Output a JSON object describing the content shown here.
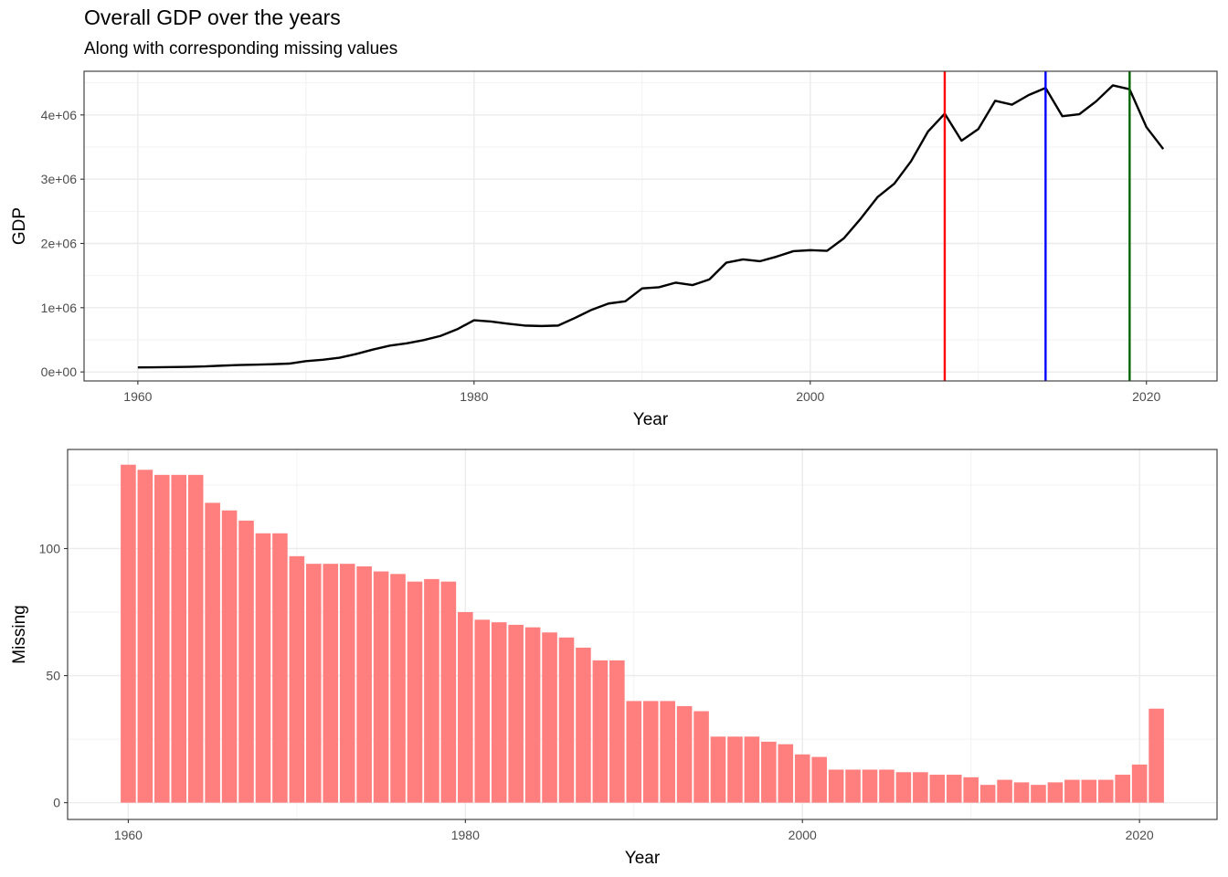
{
  "title": "Overall GDP over the years",
  "subtitle": "Along with corresponding missing values",
  "chart_data": [
    {
      "type": "line",
      "xlabel": "Year",
      "ylabel": "GDP",
      "xlim": [
        1956.8,
        2024.2
      ],
      "ylim": [
        -140000,
        4680000
      ],
      "x_ticks": [
        {
          "value": 1960,
          "label": "1960"
        },
        {
          "value": 1980,
          "label": "1980"
        },
        {
          "value": 2000,
          "label": "2000"
        },
        {
          "value": 2020,
          "label": "2020"
        }
      ],
      "y_ticks": [
        {
          "value": 0,
          "label": "0e+00"
        },
        {
          "value": 1000000,
          "label": "1e+06"
        },
        {
          "value": 2000000,
          "label": "2e+06"
        },
        {
          "value": 3000000,
          "label": "3e+06"
        },
        {
          "value": 4000000,
          "label": "4e+06"
        }
      ],
      "grid": true,
      "x": [
        1960,
        1961,
        1962,
        1963,
        1964,
        1965,
        1966,
        1967,
        1968,
        1969,
        1970,
        1971,
        1972,
        1973,
        1974,
        1975,
        1976,
        1977,
        1978,
        1979,
        1980,
        1981,
        1982,
        1983,
        1984,
        1985,
        1986,
        1987,
        1988,
        1989,
        1990,
        1991,
        1992,
        1993,
        1994,
        1995,
        1996,
        1997,
        1998,
        1999,
        2000,
        2001,
        2002,
        2003,
        2004,
        2005,
        2006,
        2007,
        2008,
        2009,
        2010,
        2011,
        2012,
        2013,
        2014,
        2015,
        2016,
        2017,
        2018,
        2019,
        2020,
        2021
      ],
      "series": [
        {
          "color": "#000000",
          "values": [
            70000,
            72000,
            76000,
            80000,
            86000,
            98000,
            108000,
            114000,
            120000,
            130000,
            168000,
            190000,
            222000,
            280000,
            350000,
            410000,
            445000,
            495000,
            560000,
            665000,
            805000,
            785000,
            752000,
            722000,
            715000,
            722000,
            840000,
            968000,
            1065000,
            1100000,
            1300000,
            1318000,
            1390000,
            1352000,
            1440000,
            1700000,
            1752000,
            1723000,
            1795000,
            1880000,
            1895000,
            1885000,
            2080000,
            2385000,
            2720000,
            2930000,
            3280000,
            3740000,
            4020000,
            3600000,
            3780000,
            4220000,
            4160000,
            4310000,
            4420000,
            3980000,
            4010000,
            4210000,
            4460000,
            4400000,
            3810000,
            3470000
          ]
        }
      ],
      "vlines": [
        {
          "x": 2008,
          "color": "#ff0000"
        },
        {
          "x": 2014,
          "color": "#0000ff"
        },
        {
          "x": 2019,
          "color": "#006400"
        }
      ]
    },
    {
      "type": "bar",
      "xlabel": "Year",
      "ylabel": "Missing",
      "xlim": [
        1956.4,
        2024.6
      ],
      "ylim": [
        -6.6,
        139
      ],
      "x_ticks": [
        {
          "value": 1960,
          "label": "1960"
        },
        {
          "value": 1980,
          "label": "1980"
        },
        {
          "value": 2000,
          "label": "2000"
        },
        {
          "value": 2020,
          "label": "2020"
        }
      ],
      "y_ticks": [
        {
          "value": 0,
          "label": "0"
        },
        {
          "value": 50,
          "label": "50"
        },
        {
          "value": 100,
          "label": "100"
        }
      ],
      "grid": true,
      "bar_color": "#ff7f7f",
      "categories": [
        1960,
        1961,
        1962,
        1963,
        1964,
        1965,
        1966,
        1967,
        1968,
        1969,
        1970,
        1971,
        1972,
        1973,
        1974,
        1975,
        1976,
        1977,
        1978,
        1979,
        1980,
        1981,
        1982,
        1983,
        1984,
        1985,
        1986,
        1987,
        1988,
        1989,
        1990,
        1991,
        1992,
        1993,
        1994,
        1995,
        1996,
        1997,
        1998,
        1999,
        2000,
        2001,
        2002,
        2003,
        2004,
        2005,
        2006,
        2007,
        2008,
        2009,
        2010,
        2011,
        2012,
        2013,
        2014,
        2015,
        2016,
        2017,
        2018,
        2019,
        2020,
        2021
      ],
      "values": [
        133,
        131,
        129,
        129,
        129,
        118,
        115,
        111,
        106,
        106,
        97,
        94,
        94,
        94,
        93,
        91,
        90,
        87,
        88,
        87,
        75,
        72,
        71,
        70,
        69,
        67,
        65,
        61,
        56,
        56,
        40,
        40,
        40,
        38,
        36,
        26,
        26,
        26,
        24,
        23,
        19,
        18,
        13,
        13,
        13,
        13,
        12,
        12,
        11,
        11,
        10,
        7,
        9,
        8,
        7,
        8,
        9,
        9,
        9,
        11,
        15,
        37
      ]
    }
  ]
}
